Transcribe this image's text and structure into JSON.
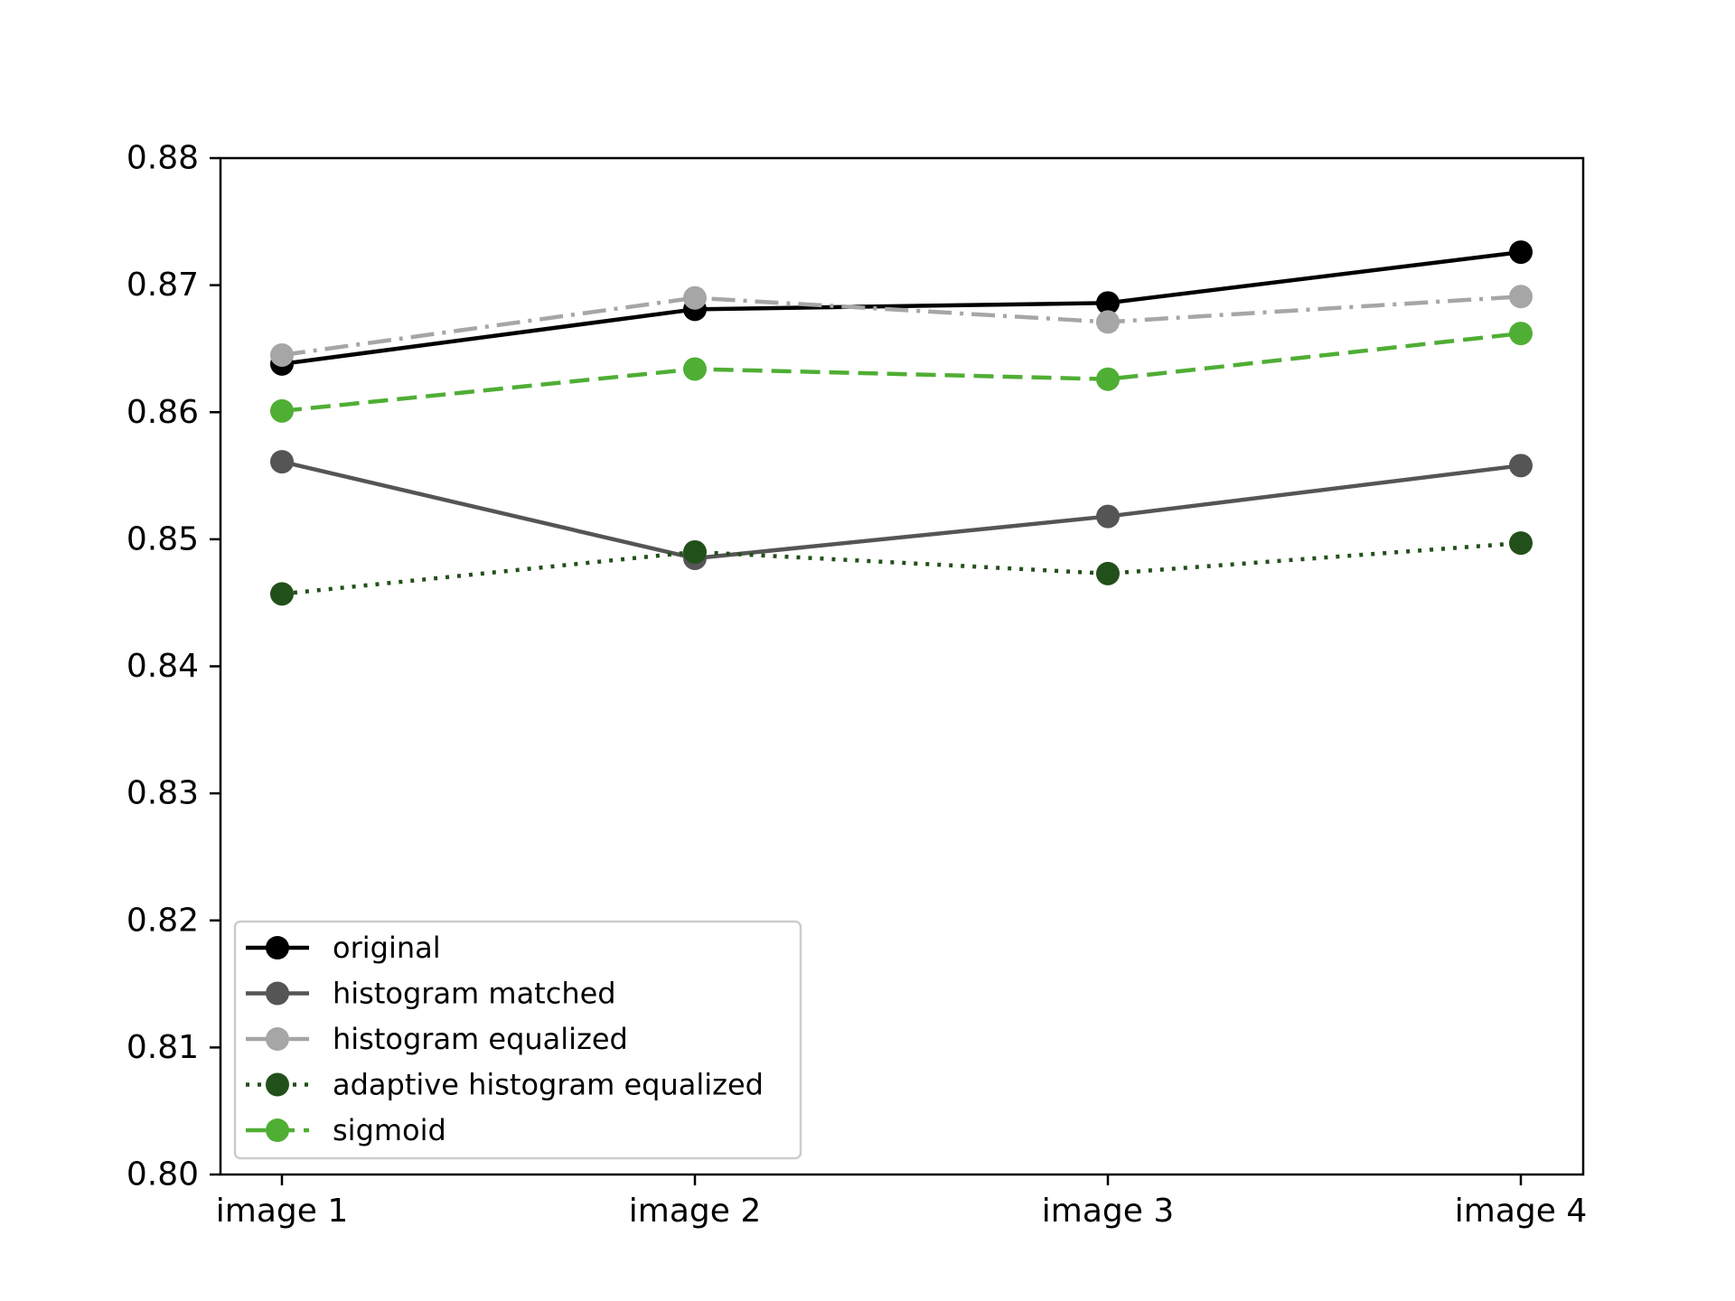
{
  "chart_data": {
    "type": "line",
    "title": "",
    "xlabel": "",
    "ylabel": "",
    "categories": [
      "image 1",
      "image 2",
      "image 3",
      "image 4"
    ],
    "ylim": [
      0.8,
      0.88
    ],
    "yticks": [
      "0.80",
      "0.81",
      "0.82",
      "0.83",
      "0.84",
      "0.85",
      "0.86",
      "0.87",
      "0.88"
    ],
    "grid": false,
    "legend_position": "lower-left",
    "series": [
      {
        "name": "original",
        "values": [
          0.8638,
          0.8681,
          0.8686,
          0.8726
        ],
        "color": "#000000",
        "line_style": "solid",
        "marker": "circle"
      },
      {
        "name": "histogram matched",
        "values": [
          0.8561,
          0.8485,
          0.8518,
          0.8558
        ],
        "color": "#555555",
        "line_style": "solid",
        "marker": "circle"
      },
      {
        "name": "histogram equalized",
        "values": [
          0.8645,
          0.869,
          0.8671,
          0.8691
        ],
        "color": "#a6a6a6",
        "line_style": "dash-dot",
        "marker": "circle"
      },
      {
        "name": "adaptive histogram equalized",
        "values": [
          0.8457,
          0.849,
          0.8473,
          0.8497
        ],
        "color": "#22501a",
        "line_style": "dotted",
        "marker": "circle"
      },
      {
        "name": "sigmoid",
        "values": [
          0.8601,
          0.8634,
          0.8626,
          0.8662
        ],
        "color": "#4fae34",
        "line_style": "dashed",
        "marker": "circle"
      }
    ]
  }
}
